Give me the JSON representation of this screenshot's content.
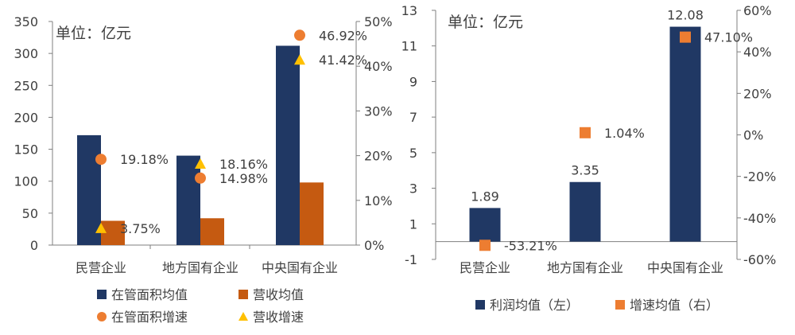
{
  "chart_data": [
    {
      "type": "bar",
      "unit_label": "单位：亿元",
      "categories": [
        "民营企业",
        "地方国有企业",
        "中央国有企业"
      ],
      "left_axis": {
        "min": 0,
        "max": 350,
        "step": 50,
        "ticks": [
          "0",
          "50",
          "100",
          "150",
          "200",
          "250",
          "300",
          "350"
        ]
      },
      "right_axis": {
        "min": 0,
        "max": 50,
        "step": 10,
        "ticks": [
          "0%",
          "10%",
          "20%",
          "30%",
          "40%",
          "50%"
        ]
      },
      "bar_series": [
        {
          "name": "在管面积均值",
          "color": "#203864",
          "values": [
            172,
            140,
            312
          ]
        },
        {
          "name": "营收均值",
          "color": "#C55A11",
          "values": [
            38,
            42,
            98
          ]
        }
      ],
      "marker_series": [
        {
          "name": "在管面积增速",
          "color": "#ED7D31",
          "marker": "circle",
          "values": [
            19.18,
            14.98,
            46.92
          ],
          "labels": [
            "19.18%",
            "14.98%",
            "46.92%"
          ]
        },
        {
          "name": "营收增速",
          "color": "#FFC000",
          "marker": "triangle",
          "values": [
            3.75,
            18.16,
            41.42
          ],
          "labels": [
            "3.75%",
            "18.16%",
            "41.42%"
          ]
        }
      ],
      "legend": {
        "placement": "bottom",
        "items": [
          "在管面积均值",
          "营收均值",
          "在管面积增速",
          "营收增速"
        ]
      }
    },
    {
      "type": "bar",
      "unit_label": "单位：亿元",
      "categories": [
        "民营企业",
        "地方国有企业",
        "中央国有企业"
      ],
      "left_axis": {
        "min": -1,
        "max": 13,
        "step": 2,
        "ticks": [
          "-1",
          "1",
          "3",
          "5",
          "7",
          "9",
          "11",
          "13"
        ]
      },
      "right_axis": {
        "min": -60,
        "max": 60,
        "step": 20,
        "ticks": [
          "-60%",
          "-40%",
          "-20%",
          "0%",
          "20%",
          "40%",
          "60%"
        ]
      },
      "bar_series": [
        {
          "name": "利润均值（左）",
          "color": "#203864",
          "values": [
            1.89,
            3.35,
            12.08
          ],
          "labels": [
            "1.89",
            "3.35",
            "12.08"
          ]
        }
      ],
      "marker_series": [
        {
          "name": "增速均值（右）",
          "color": "#ED7D31",
          "marker": "square",
          "values": [
            -53.21,
            1.04,
            47.1
          ],
          "labels": [
            "-53.21%",
            "1.04%",
            "47.10%"
          ]
        }
      ],
      "legend": {
        "placement": "bottom",
        "items": [
          "利润均值（左）",
          "增速均值（右）"
        ]
      }
    }
  ]
}
